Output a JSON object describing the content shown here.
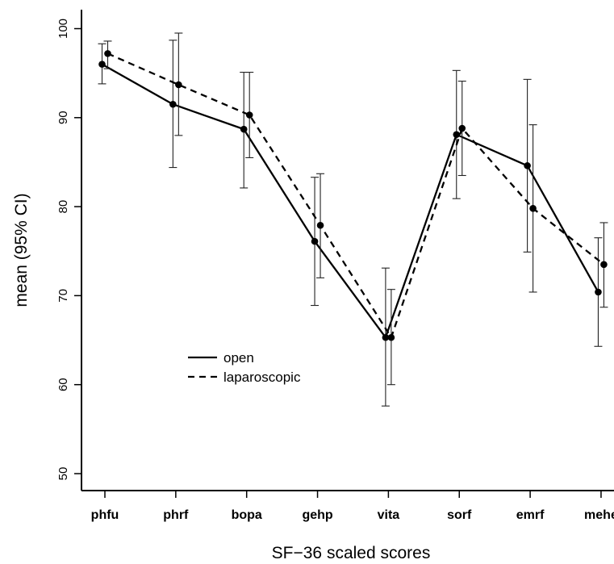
{
  "chart_data": {
    "type": "line",
    "title": "",
    "xlabel": "SF−36 scaled scores",
    "ylabel": "mean (95% CI)",
    "categories": [
      "phfu",
      "phrf",
      "bopa",
      "gehp",
      "vita",
      "sorf",
      "emrf",
      "mehe"
    ],
    "ylim": [
      48,
      102
    ],
    "yticks": [
      50,
      60,
      70,
      80,
      90,
      100
    ],
    "grid": false,
    "legend_position": "center-left",
    "series": [
      {
        "name": "open",
        "line_style": "solid",
        "color": "#000000",
        "values": [
          96.0,
          91.5,
          88.7,
          76.1,
          65.3,
          88.1,
          84.6,
          70.4
        ],
        "ci_lower": [
          93.8,
          84.4,
          82.1,
          68.9,
          57.6,
          80.9,
          74.9,
          64.3
        ],
        "ci_upper": [
          98.3,
          98.7,
          95.1,
          83.3,
          73.1,
          95.3,
          94.3,
          76.5
        ]
      },
      {
        "name": "laparoscopic",
        "line_style": "dashed",
        "color": "#000000",
        "values": [
          97.2,
          93.7,
          90.3,
          77.9,
          65.3,
          88.8,
          79.8,
          73.5
        ],
        "ci_lower": [
          95.5,
          88.0,
          85.5,
          72.0,
          60.0,
          83.5,
          70.4,
          68.7
        ],
        "ci_upper": [
          98.6,
          99.5,
          95.1,
          83.7,
          70.7,
          94.1,
          89.2,
          78.2
        ]
      }
    ]
  }
}
